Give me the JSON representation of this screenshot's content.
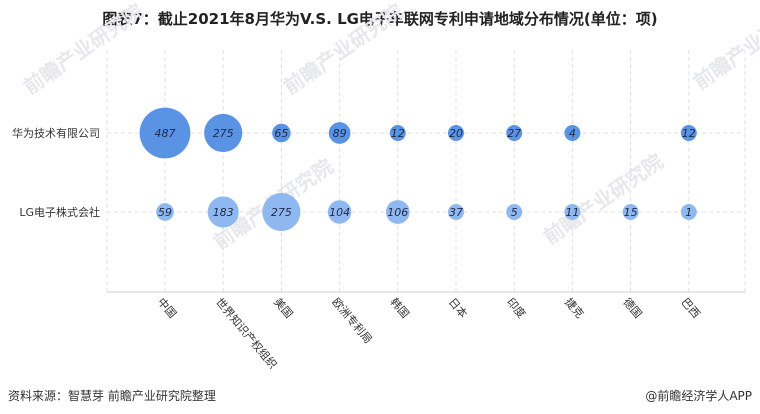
{
  "chart_data": {
    "type": "scatter",
    "title": "图表7：截止2021年8月华为V.S. LG电子车联网专利申请地域分布情况(单位：项)",
    "categories": [
      "中国",
      "世界知识产权组织",
      "美国",
      "欧洲专利局",
      "韩国",
      "日本",
      "印度",
      "捷克",
      "德国",
      "巴西"
    ],
    "series": [
      {
        "name": "华为技术有限公司",
        "values": [
          487,
          275,
          65,
          89,
          12,
          20,
          27,
          4,
          null,
          12
        ],
        "color": "#5b93e4"
      },
      {
        "name": "LG电子株式会社",
        "values": [
          59,
          183,
          275,
          104,
          106,
          37,
          5,
          11,
          15,
          1
        ],
        "color": "#8fb8f0"
      }
    ],
    "xlabel": "",
    "ylabel": "",
    "grid": true
  },
  "footer": {
    "source": "资料来源：智慧芽 前瞻产业研究院整理",
    "brand": "@前瞻经济学人APP"
  },
  "watermark": "前瞻产业研究院"
}
